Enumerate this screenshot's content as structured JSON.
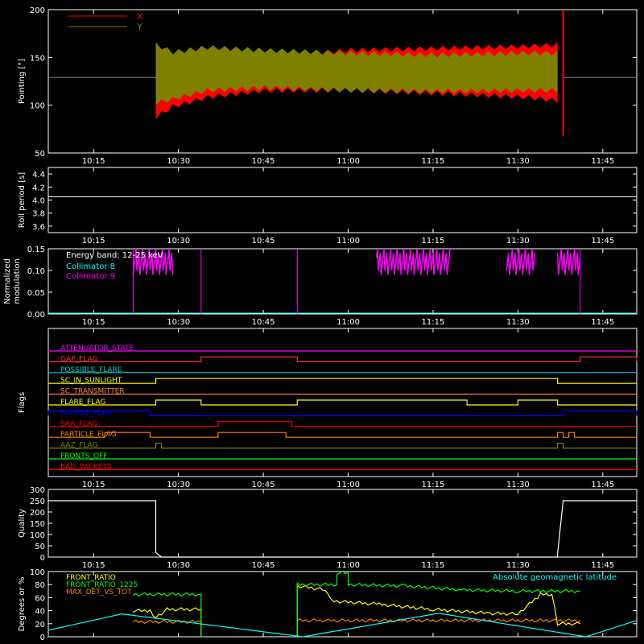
{
  "time_axis": {
    "tick_labels": [
      "10:15",
      "10:30",
      "10:45",
      "11:00",
      "11:15",
      "11:30",
      "11:45"
    ],
    "start": "10:07",
    "end": "11:51"
  },
  "chart_data": [
    {
      "type": "area",
      "ylabel": "Pointing [°]",
      "ylim": [
        50,
        200
      ],
      "yticks": [
        50,
        100,
        150,
        200
      ],
      "legend": [
        {
          "name": "X",
          "color": "#ff0000"
        },
        {
          "name": "Y",
          "color": "#808000"
        }
      ],
      "baseline": {
        "value": 129,
        "color": "#808080"
      },
      "active_window": [
        "10:26",
        "11:38"
      ],
      "series": [
        {
          "name": "X",
          "color": "#ff0000",
          "x": [
            "10:26",
            "10:29",
            "10:35",
            "10:45",
            "11:00",
            "11:15",
            "11:30",
            "11:37"
          ],
          "upper": [
            162,
            150,
            150,
            153,
            160,
            162,
            164,
            166
          ],
          "lower": [
            85,
            96,
            106,
            113,
            113,
            110,
            106,
            102
          ]
        },
        {
          "name": "Y",
          "color": "#808000",
          "x": [
            "10:26",
            "10:29",
            "10:35",
            "10:45",
            "11:00",
            "11:15",
            "11:30",
            "11:37"
          ],
          "upper": [
            166,
            158,
            163,
            160,
            157,
            155,
            157,
            157
          ],
          "lower": [
            100,
            104,
            113,
            116,
            113,
            112,
            113,
            113
          ]
        }
      ]
    },
    {
      "type": "line",
      "ylabel": "Roll period [s]",
      "ylim": [
        3.5,
        4.5
      ],
      "yticks": [
        "3.6",
        "3.8",
        "4.0",
        "4.2",
        "4.4"
      ],
      "series": [
        {
          "color": "#ffffff",
          "x": [
            "10:07",
            "11:51"
          ],
          "y": [
            4.05,
            4.05
          ]
        }
      ]
    },
    {
      "type": "line",
      "ylabel": "Normalized modulation",
      "ylim": [
        0,
        0.15
      ],
      "yticks": [
        "0.00",
        "0.05",
        "0.10",
        "0.15"
      ],
      "annotation": "Energy band: 12-25 keV",
      "legend": [
        {
          "name": "Collimator 8",
          "color": "#00ffff"
        },
        {
          "name": "Collimator 9",
          "color": "#ff00ff"
        }
      ],
      "series": [
        {
          "name": "Collimator 8",
          "color": "#00ffff",
          "x": [
            "10:07",
            "11:51"
          ],
          "y": [
            0,
            0
          ]
        },
        {
          "name": "Collimator 9",
          "color": "#ff00ff",
          "bursts": [
            [
              "10:22",
              "10:29"
            ],
            [
              "11:05",
              "11:18"
            ],
            [
              "11:28",
              "11:33"
            ],
            [
              "11:37",
              "11:41"
            ]
          ],
          "burst_range": [
            0.09,
            0.15
          ],
          "spikes": [
            "10:22",
            "10:34",
            "10:51",
            "11:41"
          ]
        }
      ]
    },
    {
      "type": "table",
      "ylabel": "Flags",
      "flags": [
        {
          "name": "ATTENUATOR_STATE",
          "color": "#ff00ff",
          "on": []
        },
        {
          "name": "GAP_FLAG",
          "color": "#ff3030",
          "on": [
            [
              "10:34",
              "10:51"
            ],
            [
              "11:41",
              "11:51"
            ]
          ]
        },
        {
          "name": "POSSIBLE_FLARE",
          "color": "#00cccc",
          "on": []
        },
        {
          "name": "SC_IN_SUNLIGHT",
          "color": "#ffff00",
          "on": [
            [
              "10:26",
              "11:37"
            ]
          ]
        },
        {
          "name": "SC_TRANSMITTER",
          "color": "#ff8040",
          "on": []
        },
        {
          "name": "FLARE_FLAG",
          "color": "#ffff00",
          "on": [
            [
              "10:26",
              "10:34"
            ],
            [
              "10:51",
              "11:21"
            ],
            [
              "11:30",
              "11:37"
            ]
          ]
        },
        {
          "name": "ECLIPSE_FLAG",
          "color": "#0000ff",
          "on": [
            [
              "10:07",
              "10:25"
            ],
            [
              "11:38",
              "11:51"
            ]
          ]
        },
        {
          "name": "SAA_FLAG",
          "color": "#ff0000",
          "on": [
            [
              "10:37",
              "10:50"
            ]
          ]
        },
        {
          "name": "PARTICLE_FLAG",
          "color": "#ff8000",
          "on": [
            [
              "10:17",
              "10:25"
            ],
            [
              "10:37",
              "10:49"
            ],
            [
              "11:37",
              "11:38"
            ],
            [
              "11:39",
              "11:40"
            ]
          ]
        },
        {
          "name": "AAZ_FLAG",
          "color": "#808000",
          "on": [
            [
              "10:26",
              "10:27"
            ],
            [
              "11:37",
              "11:38"
            ]
          ]
        },
        {
          "name": "FRONTS_OFF",
          "color": "#00ff00",
          "on": []
        },
        {
          "name": "BAD_PACKETS",
          "color": "#ff0000",
          "on": []
        }
      ]
    },
    {
      "type": "line",
      "ylabel": "Quality",
      "ylim": [
        0,
        300
      ],
      "yticks": [
        "0",
        "50",
        "100",
        "150",
        "200",
        "250",
        "300"
      ],
      "series": [
        {
          "color": "#ffffff",
          "x": [
            "10:07",
            "10:26",
            "10:26",
            "10:27",
            "11:37",
            "11:37",
            "11:38",
            "11:51"
          ],
          "y": [
            250,
            250,
            20,
            0,
            0,
            15,
            250,
            250
          ]
        }
      ]
    },
    {
      "type": "line",
      "ylabel": "Degrees or %",
      "ylim": [
        0,
        100
      ],
      "yticks": [
        "0",
        "20",
        "40",
        "60",
        "80",
        "100"
      ],
      "legend": [
        {
          "name": "FRONT_RATIO",
          "color": "#ffff00"
        },
        {
          "name": "FRONT_RATIO_1225",
          "color": "#00ff00"
        },
        {
          "name": "MAX_DET_VS_TOT",
          "color": "#ff8000"
        },
        {
          "name": "Absolute geomagnetic latitude",
          "color": "#00ffff"
        }
      ],
      "series": [
        {
          "name": "FRONT_RATIO",
          "color": "#ffff00",
          "segments": [
            {
              "x": [
                "10:22",
                "10:25",
                "10:26",
                "10:28",
                "10:34",
                "10:34"
              ],
              "y": [
                40,
                40,
                30,
                42,
                42,
                0
              ]
            },
            {
              "x": [
                "10:51",
                "10:51",
                "10:56",
                "10:57",
                "11:05",
                "11:15",
                "11:25",
                "11:30",
                "11:34",
                "11:36",
                "11:37",
                "11:41"
              ],
              "y": [
                0,
                78,
                72,
                55,
                50,
                42,
                36,
                35,
                65,
                65,
                20,
                20
              ]
            }
          ]
        },
        {
          "name": "FRONT_RATIO_1225",
          "color": "#00ff00",
          "segments": [
            {
              "x": [
                "10:22",
                "10:34",
                "10:34"
              ],
              "y": [
                65,
                65,
                0
              ]
            },
            {
              "x": [
                "10:51",
                "10:51",
                "10:58",
                "10:58",
                "11:00",
                "11:00",
                "11:10",
                "11:20",
                "11:30",
                "11:41"
              ],
              "y": [
                0,
                80,
                80,
                98,
                98,
                80,
                78,
                72,
                70,
                70
              ]
            }
          ]
        },
        {
          "name": "MAX_DET_VS_TOT",
          "color": "#ff8000",
          "segments": [
            {
              "x": [
                "10:22",
                "10:34"
              ],
              "y": [
                23,
                23
              ]
            },
            {
              "x": [
                "10:51",
                "11:41"
              ],
              "y": [
                25,
                25
              ]
            }
          ]
        },
        {
          "name": "Absolute geomagnetic latitude",
          "color": "#00ffff",
          "x": [
            "10:07",
            "10:20",
            "10:52",
            "11:16",
            "11:42",
            "11:51"
          ],
          "y": [
            10,
            35,
            0,
            36,
            0,
            25
          ]
        }
      ]
    }
  ]
}
